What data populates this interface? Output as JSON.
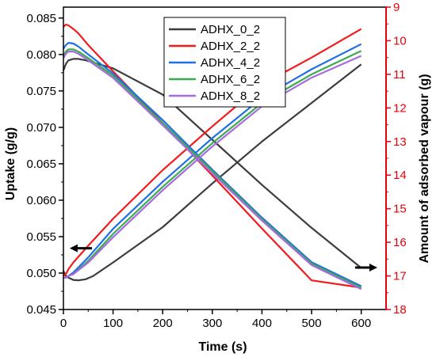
{
  "chart_data": {
    "type": "line",
    "title": "",
    "xlabel": "Time (s)",
    "ylabel": "Uptake (g/g)",
    "y2label": "Amount of adsorbed vapour (g)",
    "xlim": [
      0,
      650
    ],
    "ylim": [
      0.045,
      0.0865
    ],
    "y2lim": [
      9,
      18
    ],
    "y2_inverted": true,
    "x_ticks": [
      "0",
      "100",
      "200",
      "300",
      "400",
      "500",
      "600"
    ],
    "y_ticks": [
      "0.045",
      "0.050",
      "0.055",
      "0.060",
      "0.065",
      "0.070",
      "0.075",
      "0.080",
      "0.085"
    ],
    "y2_ticks": [
      "9",
      "10",
      "11",
      "12",
      "13",
      "14",
      "15",
      "16",
      "17",
      "18"
    ],
    "grid": false,
    "legend_position": "top-center",
    "axis_colors": {
      "left": "#000000",
      "right": "#e8000b"
    },
    "arrow_annotations": [
      {
        "series_axis": "left",
        "direction": "left",
        "at": {
          "x": 35,
          "y": 0.0534
        }
      },
      {
        "series_axis": "right",
        "direction": "right",
        "at": {
          "x": 610,
          "y2": 16.75
        }
      }
    ],
    "series": [
      {
        "name": "ADHX_0_2",
        "color": "#3d3d3d",
        "uptake": {
          "x": [
            0,
            5,
            10,
            20,
            30,
            45,
            60,
            100,
            200,
            300,
            400,
            500,
            600
          ],
          "y": [
            0.0778,
            0.0787,
            0.0792,
            0.0794,
            0.0794,
            0.0792,
            0.0789,
            0.0781,
            0.0745,
            0.0683,
            0.0621,
            0.0562,
            0.0507
          ]
        },
        "adsorbed": {
          "x": [
            0,
            5,
            10,
            20,
            30,
            45,
            60,
            100,
            200,
            300,
            400,
            500,
            600
          ],
          "y2": [
            16.85,
            17.0,
            17.05,
            17.12,
            17.13,
            17.1,
            17.0,
            16.6,
            15.55,
            14.25,
            13.0,
            11.85,
            10.7
          ]
        }
      },
      {
        "name": "ADHX_2_2",
        "color": "#f31b1b",
        "uptake": {
          "x": [
            0,
            5,
            10,
            20,
            30,
            50,
            100,
            200,
            300,
            400,
            500,
            600
          ],
          "y": [
            0.0838,
            0.0841,
            0.084,
            0.0835,
            0.0829,
            0.0813,
            0.0777,
            0.0706,
            0.0634,
            0.0561,
            0.049,
            0.048
          ]
        },
        "adsorbed": {
          "x": [
            0,
            5,
            10,
            20,
            50,
            100,
            200,
            300,
            400,
            500,
            600
          ],
          "y2": [
            17.0,
            16.95,
            16.8,
            16.6,
            16.1,
            15.3,
            13.85,
            12.55,
            11.3,
            10.5,
            9.65
          ]
        }
      },
      {
        "name": "ADHX_4_2",
        "color": "#1f6fe5",
        "uptake": {
          "x": [
            0,
            5,
            10,
            20,
            30,
            50,
            100,
            200,
            300,
            400,
            500,
            600
          ],
          "y": [
            0.0808,
            0.0813,
            0.0816,
            0.0815,
            0.0811,
            0.08,
            0.0774,
            0.071,
            0.0642,
            0.0576,
            0.0515,
            0.0482
          ]
        },
        "adsorbed": {
          "x": [
            0,
            5,
            10,
            20,
            50,
            100,
            200,
            300,
            400,
            500,
            600
          ],
          "y2": [
            17.05,
            17.05,
            17.0,
            16.9,
            16.45,
            15.6,
            14.2,
            12.9,
            11.7,
            10.85,
            10.1
          ]
        }
      },
      {
        "name": "ADHX_6_2",
        "color": "#3bab4f",
        "uptake": {
          "x": [
            0,
            5,
            10,
            20,
            30,
            50,
            100,
            200,
            300,
            400,
            500,
            600
          ],
          "y": [
            0.0798,
            0.0804,
            0.0807,
            0.0807,
            0.0804,
            0.0795,
            0.0771,
            0.0706,
            0.064,
            0.0574,
            0.0513,
            0.048
          ]
        },
        "adsorbed": {
          "x": [
            0,
            5,
            10,
            20,
            50,
            100,
            200,
            300,
            400,
            500,
            600
          ],
          "y2": [
            17.05,
            17.05,
            17.0,
            16.95,
            16.55,
            15.75,
            14.35,
            13.05,
            11.85,
            11.0,
            10.3
          ]
        }
      },
      {
        "name": "ADHX_8_2",
        "color": "#a86ae0",
        "uptake": {
          "x": [
            0,
            5,
            10,
            20,
            30,
            50,
            100,
            200,
            300,
            400,
            500,
            600
          ],
          "y": [
            0.0795,
            0.0801,
            0.0804,
            0.0804,
            0.0801,
            0.0792,
            0.0768,
            0.0703,
            0.0637,
            0.0572,
            0.0511,
            0.0478
          ]
        },
        "adsorbed": {
          "x": [
            0,
            5,
            10,
            20,
            50,
            100,
            200,
            300,
            400,
            500,
            600
          ],
          "y2": [
            17.05,
            17.05,
            17.0,
            16.95,
            16.6,
            15.85,
            14.45,
            13.15,
            11.95,
            11.1,
            10.45
          ]
        }
      }
    ]
  }
}
